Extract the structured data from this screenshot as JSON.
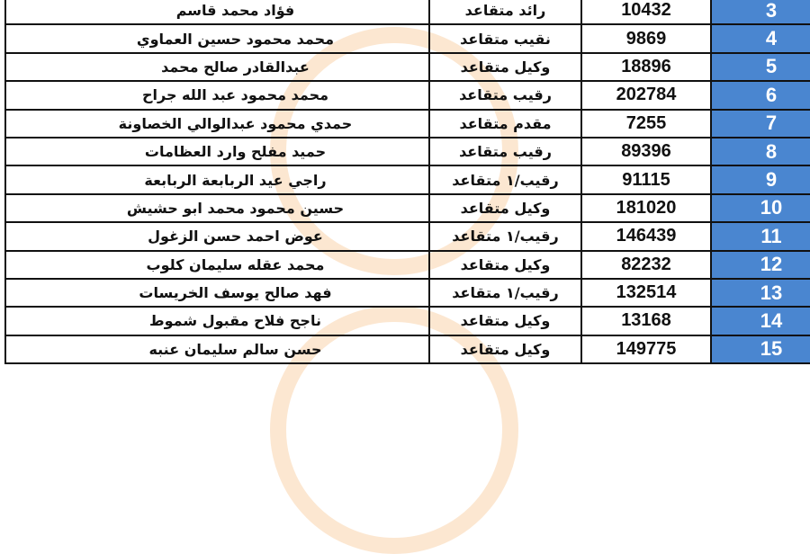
{
  "colors": {
    "index_cell": "#4a86d0",
    "watermark": "#f5aa5a"
  },
  "rows": [
    {
      "index": "3",
      "number": "10432",
      "rank": "رائد متقاعد",
      "name": "فؤاد محمد قاسم"
    },
    {
      "index": "4",
      "number": "9869",
      "rank": "نقيب متقاعد",
      "name": "محمد  محمود حسين العماوي"
    },
    {
      "index": "5",
      "number": "18896",
      "rank": "وكيل متقاعد",
      "name": "عبدالقادر صالح محمد"
    },
    {
      "index": "6",
      "number": "202784",
      "rank": "رقيب متقاعد",
      "name": "محمد محمود عبد الله جراح"
    },
    {
      "index": "7",
      "number": "7255",
      "rank": "مقدم متقاعد",
      "name": "حمدي محمود عبدالوالي الخصاونة"
    },
    {
      "index": "8",
      "number": "89396",
      "rank": "رقيب متقاعد",
      "name": "حميد مفلح وارد العظامات"
    },
    {
      "index": "9",
      "number": "91115",
      "rank": "رقيب/١ متقاعد",
      "name": "راجي عيد الربابعة الربابعة"
    },
    {
      "index": "10",
      "number": "181020",
      "rank": "وكيل متقاعد",
      "name": "حسين محمود محمد ابو حشيش"
    },
    {
      "index": "11",
      "number": "146439",
      "rank": "رقيب/١ متقاعد",
      "name": "عوض احمد حسن الزغول"
    },
    {
      "index": "12",
      "number": "82232",
      "rank": "وكيل متقاعد",
      "name": "محمد عقله سليمان كلوب"
    },
    {
      "index": "13",
      "number": "132514",
      "rank": "رقيب/١ متقاعد",
      "name": "فهد صالح يوسف الخريسات"
    },
    {
      "index": "14",
      "number": "13168",
      "rank": "وكيل متقاعد",
      "name": "ناجح فلاح مقبول شموط"
    },
    {
      "index": "15",
      "number": "149775",
      "rank": "وكيل متقاعد",
      "name": "حسن سالم سليمان عنبه"
    }
  ]
}
